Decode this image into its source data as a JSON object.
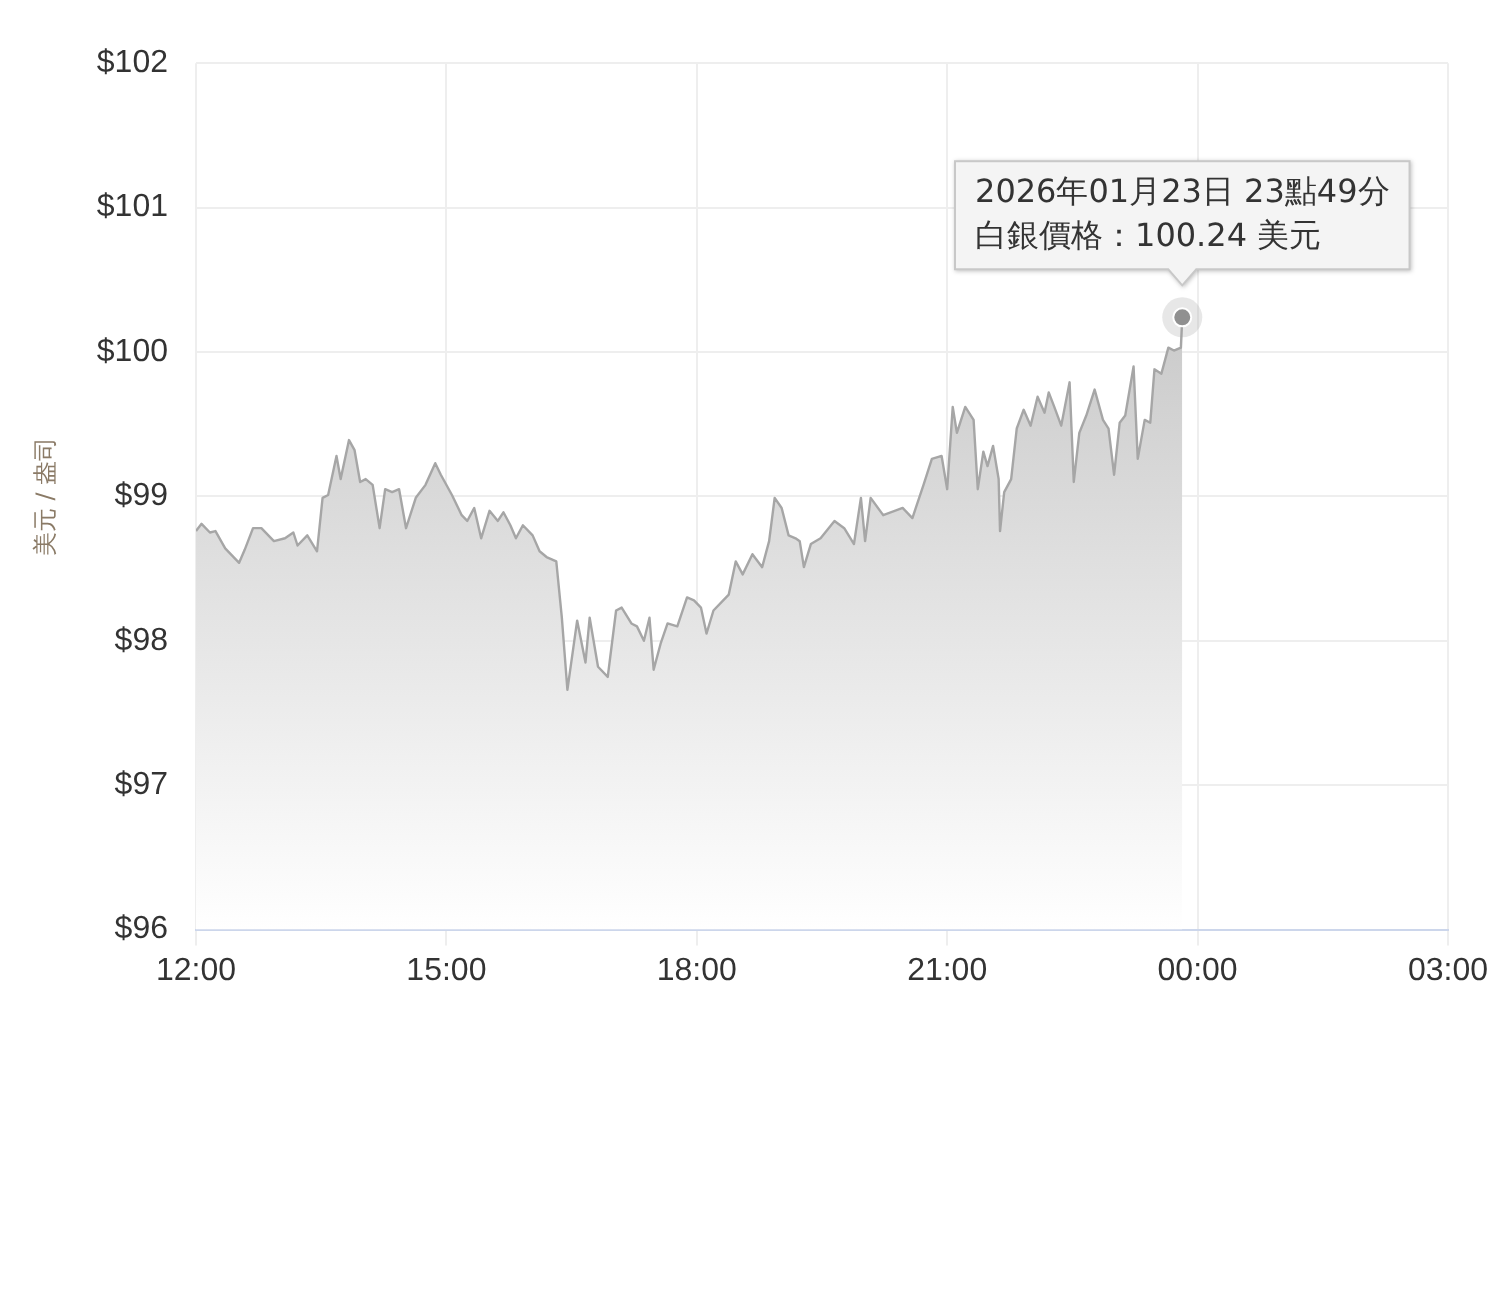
{
  "chart_data": {
    "type": "area",
    "ylabel": "美元 / 盎司",
    "x": [
      "2026-01-23T12:00",
      "2026-01-23T12:04",
      "2026-01-23T12:10",
      "2026-01-23T12:14",
      "2026-01-23T12:21",
      "2026-01-23T12:31",
      "2026-01-23T12:35",
      "2026-01-23T12:41",
      "2026-01-23T12:47",
      "2026-01-23T12:56",
      "2026-01-23T13:04",
      "2026-01-23T13:10",
      "2026-01-23T13:13",
      "2026-01-23T13:20",
      "2026-01-23T13:27",
      "2026-01-23T13:31",
      "2026-01-23T13:35",
      "2026-01-23T13:41",
      "2026-01-23T13:44",
      "2026-01-23T13:50",
      "2026-01-23T13:54",
      "2026-01-23T13:58",
      "2026-01-23T14:02",
      "2026-01-23T14:07",
      "2026-01-23T14:12",
      "2026-01-23T14:16",
      "2026-01-23T14:21",
      "2026-01-23T14:26",
      "2026-01-23T14:31",
      "2026-01-23T14:38",
      "2026-01-23T14:45",
      "2026-01-23T14:52",
      "2026-01-23T14:56",
      "2026-01-23T15:04",
      "2026-01-23T15:11",
      "2026-01-23T15:15",
      "2026-01-23T15:20",
      "2026-01-23T15:25",
      "2026-01-23T15:31",
      "2026-01-23T15:37",
      "2026-01-23T15:41",
      "2026-01-23T15:46",
      "2026-01-23T15:50",
      "2026-01-23T15:55",
      "2026-01-23T16:02",
      "2026-01-23T16:07",
      "2026-01-23T16:12",
      "2026-01-23T16:19",
      "2026-01-23T16:23",
      "2026-01-23T16:27",
      "2026-01-23T16:34",
      "2026-01-23T16:40",
      "2026-01-23T16:43",
      "2026-01-23T16:49",
      "2026-01-23T16:56",
      "2026-01-23T17:02",
      "2026-01-23T17:06",
      "2026-01-23T17:13",
      "2026-01-23T17:17",
      "2026-01-23T17:22",
      "2026-01-23T17:26",
      "2026-01-23T17:29",
      "2026-01-23T17:34",
      "2026-01-23T17:39",
      "2026-01-23T17:46",
      "2026-01-23T17:53",
      "2026-01-23T17:58",
      "2026-01-23T18:03",
      "2026-01-23T18:07",
      "2026-01-23T18:12",
      "2026-01-23T18:19",
      "2026-01-23T18:23",
      "2026-01-23T18:28",
      "2026-01-23T18:33",
      "2026-01-23T18:40",
      "2026-01-23T18:47",
      "2026-01-23T18:52",
      "2026-01-23T18:56",
      "2026-01-23T19:01",
      "2026-01-23T19:06",
      "2026-01-23T19:11",
      "2026-01-23T19:14",
      "2026-01-23T19:17",
      "2026-01-23T19:22",
      "2026-01-23T19:29",
      "2026-01-23T19:39",
      "2026-01-23T19:46",
      "2026-01-23T19:53",
      "2026-01-23T19:58",
      "2026-01-23T20:01",
      "2026-01-23T20:05",
      "2026-01-23T20:14",
      "2026-01-23T20:28",
      "2026-01-23T20:35",
      "2026-01-23T20:43",
      "2026-01-23T20:49",
      "2026-01-23T20:56",
      "2026-01-23T21:00",
      "2026-01-23T21:04",
      "2026-01-23T21:07",
      "2026-01-23T21:13",
      "2026-01-23T21:19",
      "2026-01-23T21:22",
      "2026-01-23T21:26",
      "2026-01-23T21:29",
      "2026-01-23T21:33",
      "2026-01-23T21:37",
      "2026-01-23T21:38",
      "2026-01-23T21:41",
      "2026-01-23T21:46",
      "2026-01-23T21:50",
      "2026-01-23T21:55",
      "2026-01-23T22:00",
      "2026-01-23T22:05",
      "2026-01-23T22:10",
      "2026-01-23T22:13",
      "2026-01-23T22:17",
      "2026-01-23T22:22",
      "2026-01-23T22:28",
      "2026-01-23T22:31",
      "2026-01-23T22:35",
      "2026-01-23T22:40",
      "2026-01-23T22:46",
      "2026-01-23T22:52",
      "2026-01-23T22:56",
      "2026-01-23T23:00",
      "2026-01-23T23:04",
      "2026-01-23T23:08",
      "2026-01-23T23:14",
      "2026-01-23T23:17",
      "2026-01-23T23:22",
      "2026-01-23T23:26",
      "2026-01-23T23:29",
      "2026-01-23T23:34",
      "2026-01-23T23:39",
      "2026-01-23T23:43",
      "2026-01-23T23:48",
      "2026-01-23T23:49"
    ],
    "series": [
      {
        "color": "#a6a6a6",
        "values": [
          98.76,
          98.81,
          98.75,
          98.76,
          98.64,
          98.54,
          98.63,
          98.78,
          98.78,
          98.69,
          98.71,
          98.75,
          98.66,
          98.73,
          98.62,
          98.99,
          99.01,
          99.28,
          99.12,
          99.39,
          99.32,
          99.1,
          99.12,
          99.08,
          98.78,
          99.05,
          99.03,
          99.05,
          98.78,
          98.99,
          99.08,
          99.23,
          99.15,
          99.01,
          98.87,
          98.83,
          98.92,
          98.71,
          98.9,
          98.83,
          98.89,
          98.8,
          98.71,
          98.8,
          98.73,
          98.62,
          98.58,
          98.55,
          98.16,
          97.66,
          98.14,
          97.85,
          98.16,
          97.82,
          97.75,
          98.21,
          98.23,
          98.12,
          98.1,
          98.0,
          98.16,
          97.8,
          97.98,
          98.12,
          98.1,
          98.3,
          98.28,
          98.23,
          98.05,
          98.21,
          98.28,
          98.32,
          98.55,
          98.46,
          98.6,
          98.51,
          98.69,
          98.99,
          98.92,
          98.73,
          98.71,
          98.69,
          98.51,
          98.67,
          98.71,
          98.83,
          98.78,
          98.67,
          98.99,
          98.69,
          98.99,
          98.87,
          98.92,
          98.85,
          99.08,
          99.26,
          99.28,
          99.05,
          99.62,
          99.44,
          99.62,
          99.53,
          99.05,
          99.31,
          99.21,
          99.35,
          99.12,
          98.76,
          99.03,
          99.12,
          99.47,
          99.6,
          99.49,
          99.69,
          99.58,
          99.72,
          99.62,
          99.49,
          99.79,
          99.1,
          99.44,
          99.56,
          99.74,
          99.53,
          99.47,
          99.15,
          99.51,
          99.56,
          99.9,
          99.26,
          99.53,
          99.51,
          99.88,
          99.85,
          100.03,
          100.01,
          100.03,
          100.24
        ]
      }
    ],
    "xlim": [
      "2026-01-23T12:00",
      "2026-01-24T03:00"
    ],
    "xticks": [
      {
        "value": "2026-01-23T12:00",
        "label": "12:00"
      },
      {
        "value": "2026-01-23T15:00",
        "label": "15:00"
      },
      {
        "value": "2026-01-23T18:00",
        "label": "18:00"
      },
      {
        "value": "2026-01-23T21:00",
        "label": "21:00"
      },
      {
        "value": "2026-01-24T00:00",
        "label": "00:00"
      },
      {
        "value": "2026-01-24T03:00",
        "label": "03:00"
      }
    ],
    "ylim": [
      96,
      102
    ],
    "yticks": [
      {
        "value": 96,
        "label": "$96"
      },
      {
        "value": 97,
        "label": "$97"
      },
      {
        "value": 98,
        "label": "$98"
      },
      {
        "value": 99,
        "label": "$99"
      },
      {
        "value": 100,
        "label": "$100"
      },
      {
        "value": 101,
        "label": "$101"
      },
      {
        "value": 102,
        "label": "$102"
      }
    ],
    "grid": true,
    "legend": false,
    "marker": "none",
    "annotations": [
      "2026年01月23日 23點49分",
      "白銀價格：100.24 美元"
    ]
  }
}
